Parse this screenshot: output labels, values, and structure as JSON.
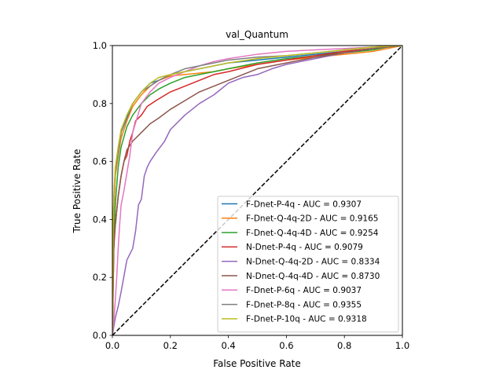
{
  "chart_data": {
    "type": "line",
    "title": "val_Quantum",
    "xlabel": "False Positive Rate",
    "ylabel": "True Positive Rate",
    "xlim": [
      0.0,
      1.0
    ],
    "ylim": [
      0.0,
      1.0
    ],
    "xticks": [
      "0.0",
      "0.2",
      "0.4",
      "0.6",
      "0.8",
      "1.0"
    ],
    "yticks": [
      "0.0",
      "0.2",
      "0.4",
      "0.6",
      "0.8",
      "1.0"
    ],
    "grid": false,
    "legend_position": "lower-right",
    "diagonal": {
      "x": [
        0,
        1
      ],
      "y": [
        0,
        1
      ],
      "color": "#000000",
      "style": "dashed"
    },
    "series": [
      {
        "name": "F-Dnet-P-4q - AUC = 0.9307",
        "color": "#1f77b4",
        "x": [
          0,
          0.003,
          0.006,
          0.01,
          0.02,
          0.03,
          0.05,
          0.07,
          0.1,
          0.13,
          0.16,
          0.2,
          0.25,
          0.3,
          0.35,
          0.4,
          0.5,
          0.6,
          0.7,
          0.8,
          0.9,
          0.95,
          1.0
        ],
        "y": [
          0,
          0.3,
          0.45,
          0.55,
          0.62,
          0.7,
          0.75,
          0.8,
          0.84,
          0.87,
          0.88,
          0.9,
          0.91,
          0.92,
          0.93,
          0.94,
          0.95,
          0.96,
          0.97,
          0.98,
          0.99,
          0.995,
          1.0
        ]
      },
      {
        "name": "F-Dnet-Q-4q-2D - AUC = 0.9165",
        "color": "#ff7f0e",
        "x": [
          0,
          0.005,
          0.01,
          0.02,
          0.03,
          0.05,
          0.07,
          0.1,
          0.13,
          0.16,
          0.2,
          0.25,
          0.3,
          0.35,
          0.4,
          0.5,
          0.6,
          0.7,
          0.8,
          0.9,
          0.95,
          1.0
        ],
        "y": [
          0,
          0.42,
          0.55,
          0.62,
          0.68,
          0.74,
          0.79,
          0.83,
          0.86,
          0.88,
          0.895,
          0.9,
          0.905,
          0.91,
          0.92,
          0.935,
          0.95,
          0.96,
          0.97,
          0.98,
          0.99,
          1.0
        ]
      },
      {
        "name": "F-Dnet-Q-4q-4D - AUC = 0.9254",
        "color": "#2ca02c",
        "x": [
          0,
          0.005,
          0.01,
          0.02,
          0.03,
          0.05,
          0.07,
          0.1,
          0.13,
          0.16,
          0.2,
          0.25,
          0.3,
          0.35,
          0.4,
          0.5,
          0.6,
          0.7,
          0.8,
          0.9,
          0.95,
          1.0
        ],
        "y": [
          0,
          0.3,
          0.45,
          0.58,
          0.65,
          0.72,
          0.76,
          0.8,
          0.83,
          0.85,
          0.87,
          0.89,
          0.9,
          0.91,
          0.92,
          0.94,
          0.955,
          0.965,
          0.975,
          0.985,
          0.995,
          1.0
        ]
      },
      {
        "name": "N-Dnet-P-4q - AUC = 0.9079",
        "color": "#d62728",
        "x": [
          0,
          0.005,
          0.01,
          0.02,
          0.03,
          0.04,
          0.05,
          0.06,
          0.07,
          0.08,
          0.1,
          0.12,
          0.15,
          0.2,
          0.25,
          0.3,
          0.35,
          0.4,
          0.5,
          0.6,
          0.7,
          0.8,
          0.9,
          1.0
        ],
        "y": [
          0,
          0.3,
          0.38,
          0.48,
          0.55,
          0.6,
          0.62,
          0.67,
          0.7,
          0.74,
          0.76,
          0.79,
          0.81,
          0.84,
          0.86,
          0.88,
          0.9,
          0.91,
          0.935,
          0.95,
          0.965,
          0.98,
          0.99,
          1.0
        ]
      },
      {
        "name": "N-Dnet-Q-4q-2D - AUC = 0.8334",
        "color": "#9467bd",
        "x": [
          0,
          0.005,
          0.01,
          0.02,
          0.03,
          0.05,
          0.07,
          0.08,
          0.09,
          0.1,
          0.11,
          0.12,
          0.13,
          0.15,
          0.18,
          0.2,
          0.25,
          0.3,
          0.35,
          0.4,
          0.45,
          0.5,
          0.55,
          0.6,
          0.7,
          0.8,
          0.9,
          1.0
        ],
        "y": [
          0,
          0.03,
          0.06,
          0.1,
          0.15,
          0.26,
          0.3,
          0.36,
          0.45,
          0.47,
          0.55,
          0.58,
          0.6,
          0.63,
          0.67,
          0.71,
          0.76,
          0.8,
          0.83,
          0.87,
          0.89,
          0.9,
          0.92,
          0.935,
          0.955,
          0.975,
          0.99,
          1.0
        ]
      },
      {
        "name": "N-Dnet-Q-4q-4D - AUC = 0.8730",
        "color": "#8c564b",
        "x": [
          0,
          0.003,
          0.006,
          0.01,
          0.02,
          0.03,
          0.04,
          0.05,
          0.07,
          0.1,
          0.13,
          0.16,
          0.2,
          0.25,
          0.3,
          0.35,
          0.4,
          0.45,
          0.5,
          0.6,
          0.7,
          0.8,
          0.9,
          1.0
        ],
        "y": [
          0,
          0.25,
          0.33,
          0.38,
          0.48,
          0.55,
          0.6,
          0.64,
          0.67,
          0.7,
          0.73,
          0.75,
          0.78,
          0.81,
          0.84,
          0.86,
          0.88,
          0.9,
          0.92,
          0.94,
          0.96,
          0.975,
          0.99,
          1.0
        ]
      },
      {
        "name": "F-Dnet-P-6q - AUC = 0.9037",
        "color": "#e377c2",
        "x": [
          0,
          0.005,
          0.01,
          0.015,
          0.02,
          0.025,
          0.03,
          0.04,
          0.05,
          0.06,
          0.07,
          0.1,
          0.13,
          0.16,
          0.2,
          0.25,
          0.3,
          0.35,
          0.4,
          0.5,
          0.6,
          0.7,
          0.8,
          0.9,
          1.0
        ],
        "y": [
          0,
          0.05,
          0.12,
          0.2,
          0.3,
          0.38,
          0.45,
          0.5,
          0.56,
          0.62,
          0.7,
          0.8,
          0.84,
          0.87,
          0.89,
          0.91,
          0.93,
          0.945,
          0.955,
          0.97,
          0.98,
          0.985,
          0.99,
          0.995,
          1.0
        ]
      },
      {
        "name": "F-Dnet-P-8q - AUC = 0.9355",
        "color": "#7f7f7f",
        "x": [
          0,
          0.003,
          0.006,
          0.01,
          0.02,
          0.03,
          0.05,
          0.07,
          0.1,
          0.13,
          0.16,
          0.2,
          0.25,
          0.3,
          0.35,
          0.4,
          0.5,
          0.6,
          0.7,
          0.8,
          0.9,
          1.0
        ],
        "y": [
          0,
          0.4,
          0.5,
          0.57,
          0.63,
          0.7,
          0.76,
          0.8,
          0.84,
          0.86,
          0.88,
          0.9,
          0.92,
          0.93,
          0.94,
          0.95,
          0.96,
          0.965,
          0.975,
          0.985,
          0.995,
          1.0
        ]
      },
      {
        "name": "F-Dnet-P-10q - AUC = 0.9318",
        "color": "#bcbd22",
        "x": [
          0,
          0.003,
          0.006,
          0.01,
          0.02,
          0.03,
          0.05,
          0.07,
          0.1,
          0.13,
          0.16,
          0.2,
          0.25,
          0.3,
          0.35,
          0.4,
          0.5,
          0.6,
          0.7,
          0.8,
          0.9,
          1.0
        ],
        "y": [
          0,
          0.38,
          0.5,
          0.58,
          0.65,
          0.71,
          0.76,
          0.8,
          0.84,
          0.87,
          0.89,
          0.9,
          0.91,
          0.92,
          0.93,
          0.94,
          0.955,
          0.965,
          0.975,
          0.985,
          0.995,
          1.0
        ]
      }
    ]
  }
}
